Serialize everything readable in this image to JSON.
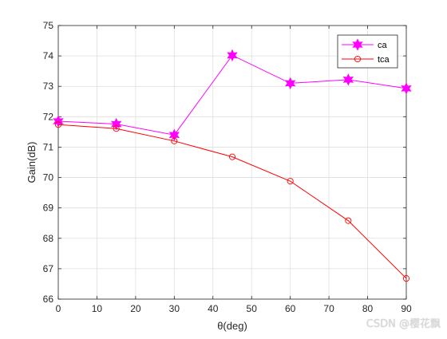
{
  "chart_data": {
    "type": "line",
    "xlabel": "θ(deg)",
    "ylabel": "Gain(dB)",
    "xlim": [
      0,
      90
    ],
    "ylim": [
      66,
      75
    ],
    "xticks": [
      0,
      10,
      20,
      30,
      40,
      50,
      60,
      70,
      80,
      90
    ],
    "yticks": [
      66,
      67,
      68,
      69,
      70,
      71,
      72,
      73,
      74,
      75
    ],
    "grid": true,
    "legend_position": "top-right",
    "x": [
      0,
      15,
      30,
      45,
      60,
      75,
      90
    ],
    "series": [
      {
        "name": "ca",
        "color": "#ff00ff",
        "marker": "hexagram",
        "values": [
          71.85,
          71.76,
          71.4,
          74.02,
          73.1,
          73.22,
          72.93
        ]
      },
      {
        "name": "tca",
        "color": "#ff0000",
        "marker": "circle",
        "values": [
          71.74,
          71.61,
          71.2,
          70.68,
          69.88,
          68.58,
          66.68
        ]
      }
    ]
  },
  "watermark": "CSDN @樱花飘"
}
